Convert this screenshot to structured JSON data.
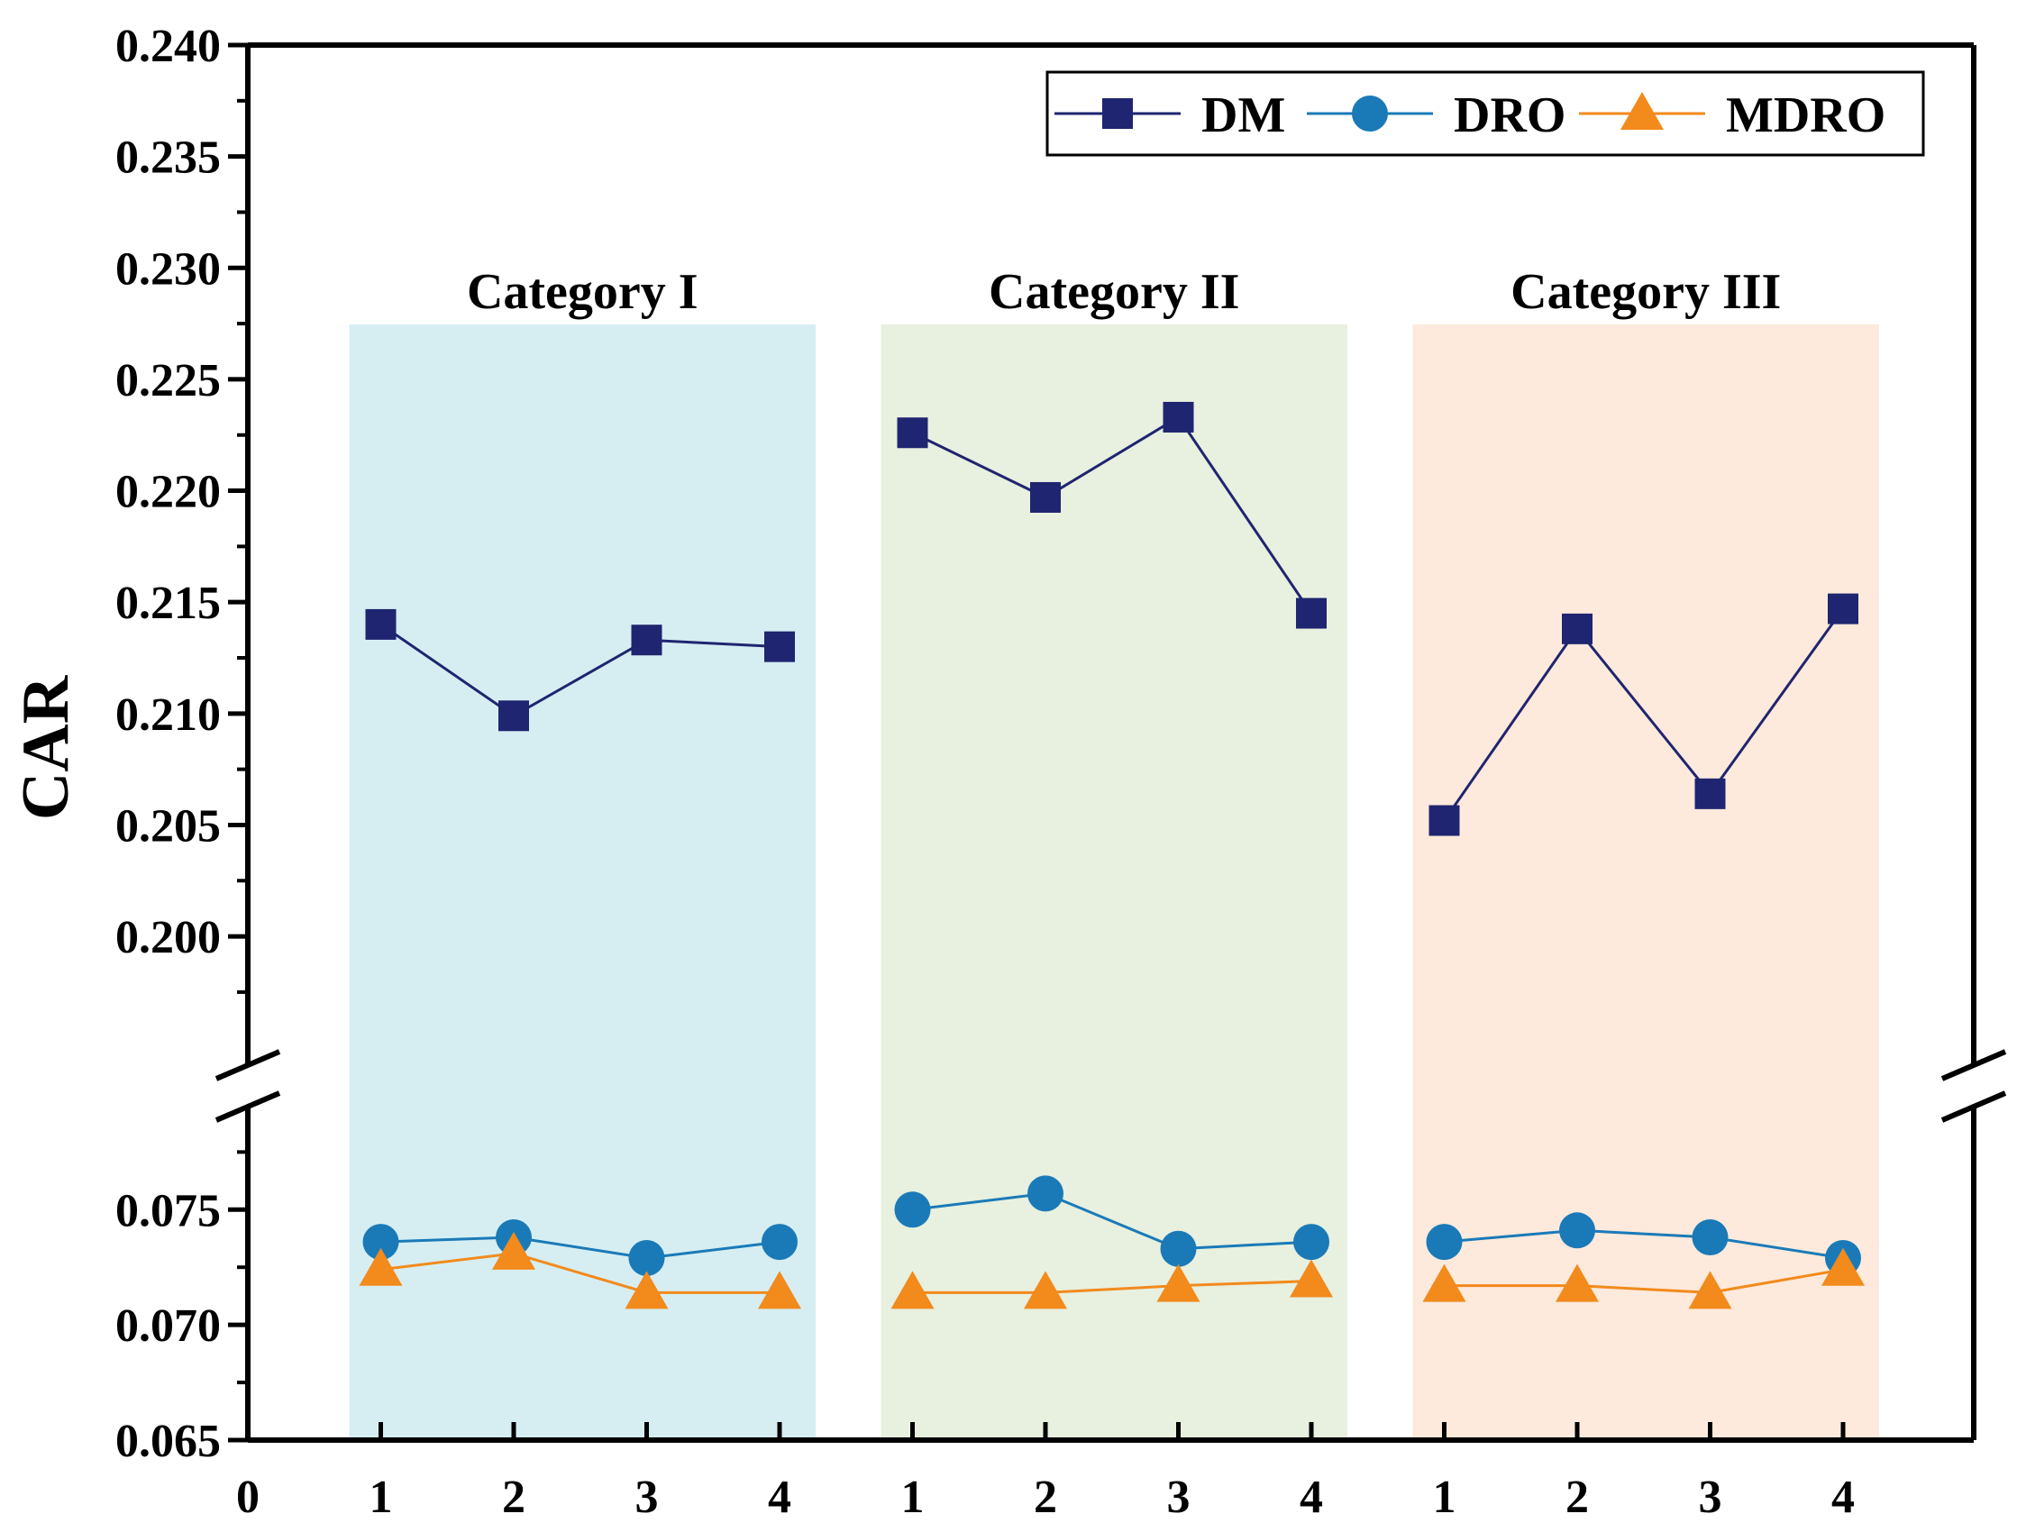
{
  "chart_data": {
    "type": "line",
    "ylabel": "CAR",
    "xlabel": "",
    "x_origin_label": "0",
    "categories": [
      "1",
      "2",
      "3",
      "4",
      "1",
      "2",
      "3",
      "4",
      "1",
      "2",
      "3",
      "4"
    ],
    "groups": [
      {
        "name": "Category I",
        "bg": "#d6eef2",
        "indices": [
          0,
          1,
          2,
          3
        ]
      },
      {
        "name": "Category II",
        "bg": "#e8f0df",
        "indices": [
          4,
          5,
          6,
          7
        ]
      },
      {
        "name": "Category III",
        "bg": "#fdeadc",
        "indices": [
          8,
          9,
          10,
          11
        ]
      }
    ],
    "y_axis": {
      "broken": true,
      "lower_range": [
        0.065,
        0.079
      ],
      "upper_range": [
        0.196,
        0.24
      ],
      "lower_ticks": [
        "0.065",
        "0.070",
        "0.075"
      ],
      "upper_ticks": [
        "0.200",
        "0.205",
        "0.210",
        "0.215",
        "0.220",
        "0.225",
        "0.230",
        "0.235",
        "0.240"
      ]
    },
    "series": [
      {
        "name": "DM",
        "color": "#1f2570",
        "marker": "square",
        "values": [
          0.214,
          0.2099,
          0.2133,
          0.213,
          0.2226,
          0.2197,
          0.2233,
          0.2145,
          0.2052,
          0.2138,
          0.2064,
          0.2147
        ]
      },
      {
        "name": "DRO",
        "color": "#1a7ab8",
        "marker": "circle",
        "values": [
          0.0736,
          0.0738,
          0.0729,
          0.0736,
          0.075,
          0.0757,
          0.0733,
          0.0736,
          0.0736,
          0.0741,
          0.0738,
          0.0729
        ]
      },
      {
        "name": "MDRO",
        "color": "#f28a1c",
        "marker": "triangle",
        "values": [
          0.0724,
          0.0731,
          0.0714,
          0.0714,
          0.0714,
          0.0714,
          0.0717,
          0.0719,
          0.0717,
          0.0717,
          0.0714,
          0.0724
        ]
      }
    ],
    "legend": {
      "position": "top-right",
      "entries": [
        "DM",
        "DRO",
        "MDRO"
      ]
    }
  }
}
